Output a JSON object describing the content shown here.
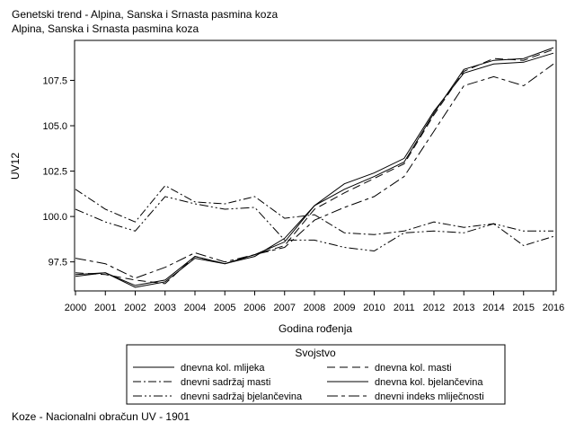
{
  "chart_data": {
    "type": "line",
    "title": "Genetski trend - Alpina, Sanska i Srnasta pasmina koza",
    "subtitle": "Alpina, Sanska i Srnasta pasmina koza",
    "xlabel": "Godina rođenja",
    "ylabel": "UV12",
    "footnote": "Koze - Nacionalni obračun UV - 1901",
    "legend_title": "Svojstvo",
    "legend_position": "bottom",
    "grid": false,
    "categories": [
      "2000",
      "2001",
      "2002",
      "2003",
      "2004",
      "2005",
      "2006",
      "2007",
      "2008",
      "2009",
      "2010",
      "2011",
      "2012",
      "2013",
      "2014",
      "2015",
      "2016"
    ],
    "xlim": [
      2000,
      2016
    ],
    "ylim": [
      95.9,
      109.7
    ],
    "yticks": [
      "97.5",
      "100.0",
      "102.5",
      "105.0",
      "107.5"
    ],
    "series": [
      {
        "name": "dnevna kol. mlijeka",
        "dash": "",
        "values": [
          96.8,
          96.9,
          96.2,
          96.5,
          97.8,
          97.4,
          97.9,
          98.6,
          100.6,
          101.8,
          102.4,
          103.2,
          105.8,
          107.9,
          108.4,
          108.5,
          109.0
        ]
      },
      {
        "name": "dnevna kol. masti",
        "dash": "9,5",
        "values": [
          96.9,
          96.8,
          96.5,
          96.3,
          97.8,
          97.4,
          97.9,
          98.4,
          100.4,
          101.3,
          102.1,
          102.9,
          105.6,
          108.0,
          108.7,
          108.6,
          109.2
        ]
      },
      {
        "name": "dnevni sadržaj masti",
        "dash": "9,3,2,3",
        "values": [
          101.5,
          100.4,
          99.7,
          101.7,
          100.8,
          100.7,
          101.1,
          99.9,
          100.1,
          99.1,
          99.0,
          99.2,
          99.7,
          99.4,
          99.6,
          98.4,
          98.9
        ]
      },
      {
        "name": "dnevna kol. bjelančevina",
        "dash": "",
        "values": [
          96.7,
          96.9,
          96.1,
          96.4,
          97.7,
          97.4,
          97.8,
          98.8,
          100.6,
          101.5,
          102.2,
          103.0,
          105.7,
          108.1,
          108.6,
          108.7,
          109.3
        ]
      },
      {
        "name": "dnevni sadržaj bjelančevina",
        "dash": "10,3,2,3,2,3",
        "values": [
          100.4,
          99.7,
          99.2,
          101.1,
          100.7,
          100.4,
          100.5,
          98.7,
          98.7,
          98.3,
          98.1,
          99.1,
          99.2,
          99.1,
          99.6,
          99.2,
          99.2
        ]
      },
      {
        "name": "dnevni indeks mliječnosti",
        "dash": "12,4,4,4",
        "values": [
          97.7,
          97.4,
          96.6,
          97.2,
          98.0,
          97.5,
          97.9,
          98.3,
          99.8,
          100.5,
          101.1,
          102.2,
          104.7,
          107.2,
          107.7,
          107.2,
          108.4
        ]
      }
    ]
  }
}
